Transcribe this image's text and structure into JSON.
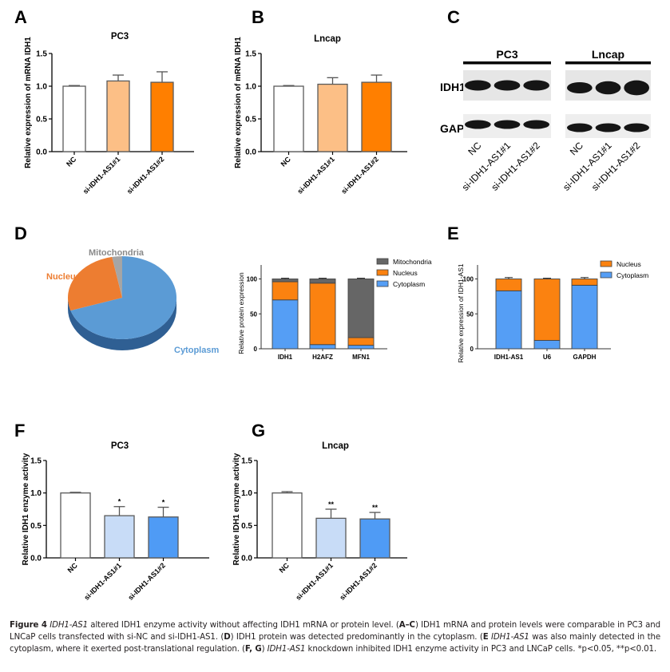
{
  "panels": {
    "A": "A",
    "B": "B",
    "C": "C",
    "D": "D",
    "E": "E",
    "F": "F",
    "G": "G"
  },
  "colors": {
    "nc": "#ffffff",
    "orange_light": "#fcbf86",
    "orange": "#ff7f00",
    "blue_light": "#c8dcf7",
    "blue": "#4f9bf5",
    "cytoplasm": "#559ef5",
    "nucleus": "#fb8210",
    "mitochondria": "#666666",
    "bar_edge": "#5a5a5a",
    "pie_cytoplasm": "#5b9bd5",
    "pie_nucleus": "#ed7d31",
    "pie_mito": "#a5a5a5"
  },
  "blot": {
    "groups": [
      "PC3",
      "Lncap"
    ],
    "rows": [
      "IDH1",
      "GAPDH"
    ],
    "lanes": [
      "NC",
      "si-IDH1-AS1#1",
      "si-IDH1-AS1#2"
    ]
  },
  "chart_data": [
    {
      "id": "A",
      "type": "bar",
      "title": "PC3",
      "ylabel": "Relative  expression of mRNA IDH1",
      "xlabel": "",
      "categories": [
        "NC",
        "si-IDH1-AS1#1",
        "si-IDH1-AS1#2"
      ],
      "values": [
        1.0,
        1.08,
        1.06
      ],
      "errors": [
        0.01,
        0.09,
        0.16
      ],
      "ylim": [
        0,
        1.5
      ],
      "yticks": [
        "0.0",
        "0.5",
        "1.0",
        "1.5"
      ],
      "annotations": [
        "",
        "",
        ""
      ]
    },
    {
      "id": "B",
      "type": "bar",
      "title": "Lncap",
      "ylabel": "Relative  expression of mRNA IDH1",
      "xlabel": "",
      "categories": [
        "NC",
        "si-IDH1-AS1#1",
        "si-IDH1-AS1#2"
      ],
      "values": [
        1.0,
        1.03,
        1.06
      ],
      "errors": [
        0.01,
        0.1,
        0.11
      ],
      "ylim": [
        0,
        1.5
      ],
      "yticks": [
        "0.0",
        "0.5",
        "1.0",
        "1.5"
      ],
      "annotations": [
        "",
        "",
        ""
      ]
    },
    {
      "id": "D-pie",
      "type": "pie",
      "title": "",
      "labels": [
        "Cytoplasm",
        "Nucleus",
        "Mitochondria"
      ],
      "values": [
        70,
        27,
        3
      ]
    },
    {
      "id": "D-bar",
      "type": "bar",
      "stacked": true,
      "title": "",
      "ylabel": "Relative protein  expression",
      "categories": [
        "IDH1",
        "H2AFZ",
        "MFN1"
      ],
      "series": [
        {
          "name": "Cytoplasm",
          "values": [
            70,
            6,
            5
          ],
          "errors": [
            2,
            1,
            1
          ]
        },
        {
          "name": "Nucleus",
          "values": [
            26,
            88,
            11
          ],
          "errors": [
            1,
            1,
            0
          ]
        },
        {
          "name": "Mitochondria",
          "values": [
            4,
            6,
            84
          ],
          "errors": [
            1,
            1,
            1
          ]
        }
      ],
      "legend": [
        "Mitochondria",
        "Nucleus",
        "Cytoplasm"
      ],
      "legend_position": "top-right",
      "ylim": [
        0,
        120
      ],
      "yticks": [
        "0",
        "50",
        "100"
      ]
    },
    {
      "id": "E",
      "type": "bar",
      "stacked": true,
      "title": "",
      "ylabel": "Relative  expression of IDH1-AS1",
      "categories": [
        "IDH1-AS1",
        "U6",
        "GAPDH"
      ],
      "series": [
        {
          "name": "Cytoplasm",
          "values": [
            83,
            12,
            91
          ],
          "errors": [
            2,
            1,
            2
          ]
        },
        {
          "name": "Nucleus",
          "values": [
            17,
            88,
            9
          ],
          "errors": [
            2,
            1,
            2
          ]
        }
      ],
      "legend": [
        "Nucleus",
        "Cytoplasm"
      ],
      "legend_position": "top-right",
      "ylim": [
        0,
        120
      ],
      "yticks": [
        "0",
        "50",
        "100"
      ]
    },
    {
      "id": "F",
      "type": "bar",
      "title": "PC3",
      "ylabel": "Relative  IDH1 enzyme activity",
      "categories": [
        "NC",
        "si-IDH1-AS1#1",
        "si-IDH1-AS1#2"
      ],
      "values": [
        1.0,
        0.65,
        0.63
      ],
      "errors": [
        0.01,
        0.14,
        0.15
      ],
      "ylim": [
        0,
        1.5
      ],
      "yticks": [
        "0.0",
        "0.5",
        "1.0",
        "1.5"
      ],
      "annotations": [
        "",
        "*",
        "*"
      ]
    },
    {
      "id": "G",
      "type": "bar",
      "title": "Lncap",
      "ylabel": "Relative  IDH1 enzyme activity",
      "categories": [
        "NC",
        "si-IDH1-AS1#1",
        "si-IDH1-AS1#2"
      ],
      "values": [
        1.0,
        0.61,
        0.6
      ],
      "errors": [
        0.02,
        0.14,
        0.1
      ],
      "ylim": [
        0,
        1.5
      ],
      "yticks": [
        "0.0",
        "0.5",
        "1.0",
        "1.5"
      ],
      "annotations": [
        "",
        "**",
        "**"
      ]
    }
  ],
  "caption": {
    "figure_label": "Figure 4",
    "gene_italic": "IDH1-AS1",
    "s1": " altered IDH1 enzyme activity without affecting IDH1 mRNA or protein level. (",
    "ac": "A–C",
    "s2": ") IDH1 mRNA and protein levels were comparable in PC3 and LNCaP cells transfected with si-NC and si-IDH1-AS1. (",
    "d": "D",
    "s3": ") IDH1 protein was detected predominantly in the cytoplasm. (",
    "e": "E",
    "s4_gene": "IDH1-AS1",
    "s4": " was also mainly detected in the cytoplasm, where it exerted post-translational regulation. (",
    "fg": "F, G",
    "s5_gene": "IDH1-AS1",
    "s5": " knockdown inhibited IDH1 enzyme activity in PC3 and LNCaP cells. *p<0.05, **p<0.01."
  }
}
